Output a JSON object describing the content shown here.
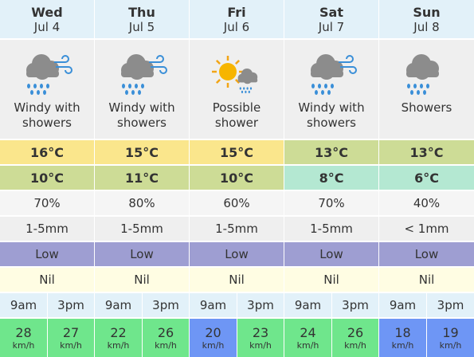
{
  "wind_unit": "km/h",
  "days": [
    {
      "day": "Wed",
      "date": "Jul 4",
      "icon": "windy-showers",
      "description": "Windy with showers",
      "max": "16°C",
      "max_color": "#fae68c",
      "min": "10°C",
      "min_color": "#cddc96",
      "rain_chance": "70%",
      "rain_amount": "1-5mm",
      "uv": "Low",
      "frost": "Nil",
      "times": [
        "9am",
        "3pm"
      ],
      "wind": [
        "28",
        "27"
      ],
      "wind_colors": [
        "#6fe68c",
        "#6fe68c"
      ]
    },
    {
      "day": "Thu",
      "date": "Jul 5",
      "icon": "windy-showers",
      "description": "Windy with showers",
      "max": "15°C",
      "max_color": "#fae68c",
      "min": "11°C",
      "min_color": "#cddc96",
      "rain_chance": "80%",
      "rain_amount": "1-5mm",
      "uv": "Low",
      "frost": "Nil",
      "times": [
        "9am",
        "3pm"
      ],
      "wind": [
        "22",
        "26"
      ],
      "wind_colors": [
        "#6fe68c",
        "#6fe68c"
      ]
    },
    {
      "day": "Fri",
      "date": "Jul 6",
      "icon": "sun-shower",
      "description": "Possible shower",
      "max": "15°C",
      "max_color": "#fae68c",
      "min": "10°C",
      "min_color": "#cddc96",
      "rain_chance": "60%",
      "rain_amount": "1-5mm",
      "uv": "Low",
      "frost": "Nil",
      "times": [
        "9am",
        "3pm"
      ],
      "wind": [
        "20",
        "23"
      ],
      "wind_colors": [
        "#6e96f5",
        "#6fe68c"
      ]
    },
    {
      "day": "Sat",
      "date": "Jul 7",
      "icon": "windy-showers",
      "description": "Windy with showers",
      "max": "13°C",
      "max_color": "#cddc96",
      "min": "8°C",
      "min_color": "#b4e8d2",
      "rain_chance": "70%",
      "rain_amount": "1-5mm",
      "uv": "Low",
      "frost": "Nil",
      "times": [
        "9am",
        "3pm"
      ],
      "wind": [
        "24",
        "26"
      ],
      "wind_colors": [
        "#6fe68c",
        "#6fe68c"
      ]
    },
    {
      "day": "Sun",
      "date": "Jul 8",
      "icon": "showers",
      "description": "Showers",
      "max": "13°C",
      "max_color": "#cddc96",
      "min": "6°C",
      "min_color": "#b4e8d2",
      "rain_chance": "40%",
      "rain_amount": "< 1mm",
      "uv": "Low",
      "frost": "Nil",
      "times": [
        "9am",
        "3pm"
      ],
      "wind": [
        "18",
        "19"
      ],
      "wind_colors": [
        "#6e96f5",
        "#6e96f5"
      ]
    }
  ]
}
